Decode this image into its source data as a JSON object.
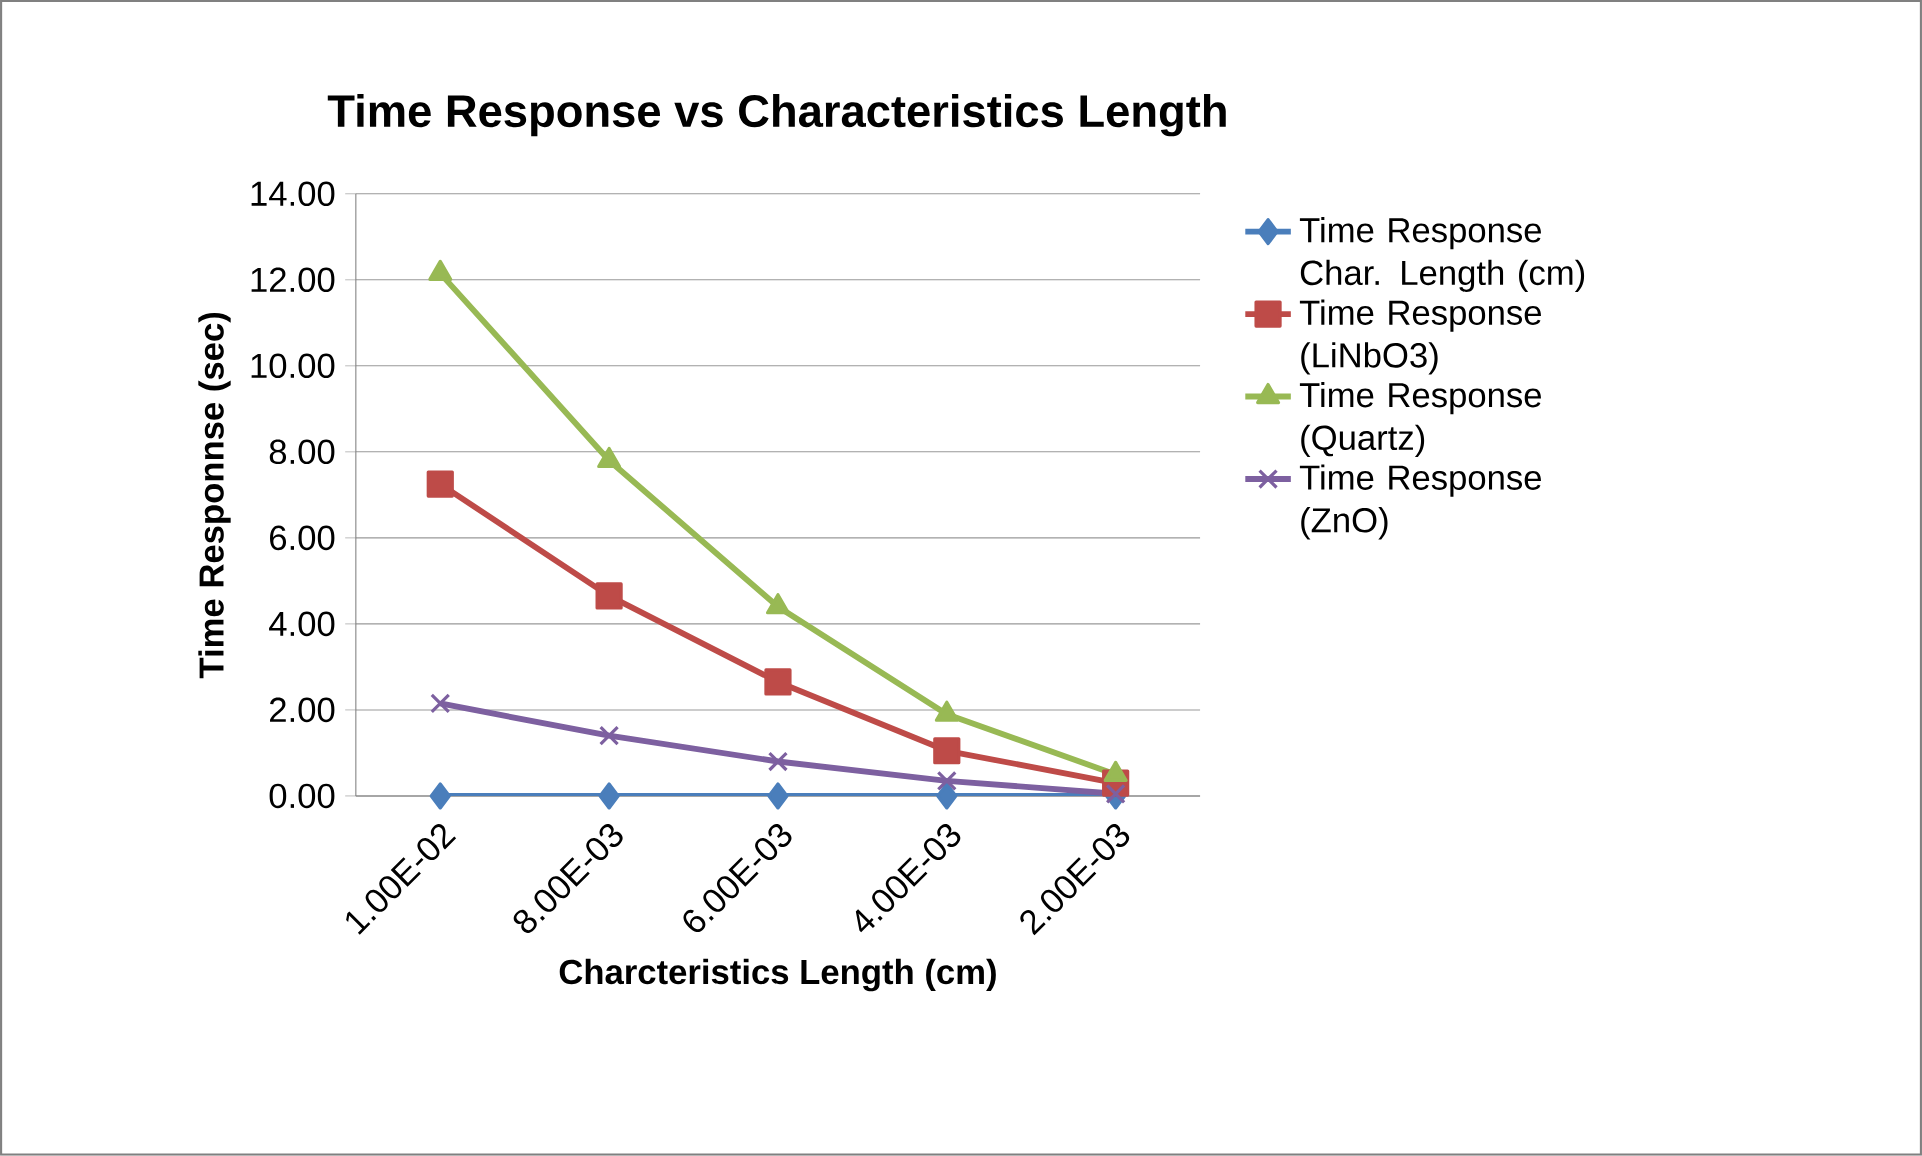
{
  "chart_data": {
    "type": "line",
    "title": "Time Response vs Characteristics Length",
    "xlabel": "Charcteristics Length (cm)",
    "ylabel": "Time Responnse (sec)",
    "categories": [
      "1.00E-02",
      "8.00E-03",
      "6.00E-03",
      "4.00E-03",
      "2.00E-03"
    ],
    "series": [
      {
        "name": "Time Response  Char. Length (cm)",
        "color": "#4a7ebb",
        "marker": "diamond",
        "values": [
          0,
          0,
          0,
          0,
          0
        ]
      },
      {
        "name": "Time Response (LiNbO3)",
        "color": "#be4b48",
        "marker": "square",
        "values": [
          7.25,
          4.65,
          2.65,
          1.05,
          0.3
        ]
      },
      {
        "name": "Time Response (Quartz)",
        "color": "#98b954",
        "marker": "triangle",
        "values": [
          12.15,
          7.8,
          4.4,
          1.9,
          0.5
        ]
      },
      {
        "name": "Time Response   (ZnO)",
        "color": "#7d60a0",
        "marker": "cross",
        "values": [
          2.15,
          1.4,
          0.8,
          0.35,
          0.05
        ]
      }
    ],
    "ylim": [
      0,
      14
    ],
    "yticks": [
      {
        "value": 0,
        "label": "0.00"
      },
      {
        "value": 2,
        "label": "2.00"
      },
      {
        "value": 4,
        "label": "4.00"
      },
      {
        "value": 6,
        "label": "6.00"
      },
      {
        "value": 8,
        "label": "8.00"
      },
      {
        "value": 10,
        "label": "10.00"
      },
      {
        "value": 12,
        "label": "12.00"
      },
      {
        "value": 14,
        "label": "14.00"
      }
    ],
    "grid": "y",
    "legend": "right"
  }
}
